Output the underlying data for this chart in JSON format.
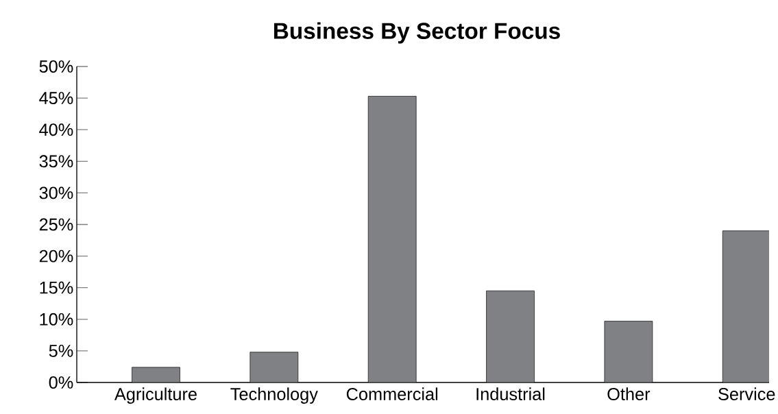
{
  "chart_data": {
    "type": "bar",
    "title": "Business By Sector Focus",
    "categories": [
      "Agriculture",
      "Technology",
      "Commercial",
      "Industrial",
      "Other",
      "Service"
    ],
    "values": [
      2.4,
      4.8,
      45.3,
      14.5,
      9.7,
      24.0
    ],
    "color": "#808185",
    "ylim": [
      0,
      50
    ],
    "yticks": [
      {
        "value": 0,
        "label": "0%"
      },
      {
        "value": 5,
        "label": "5%"
      },
      {
        "value": 10,
        "label": "10%"
      },
      {
        "value": 15,
        "label": "15%"
      },
      {
        "value": 20,
        "label": "20%"
      },
      {
        "value": 25,
        "label": "25%"
      },
      {
        "value": 30,
        "label": "30%"
      },
      {
        "value": 35,
        "label": "35%"
      },
      {
        "value": 40,
        "label": "40%"
      },
      {
        "value": 45,
        "label": "45%"
      },
      {
        "value": 50,
        "label": "50%"
      }
    ]
  }
}
